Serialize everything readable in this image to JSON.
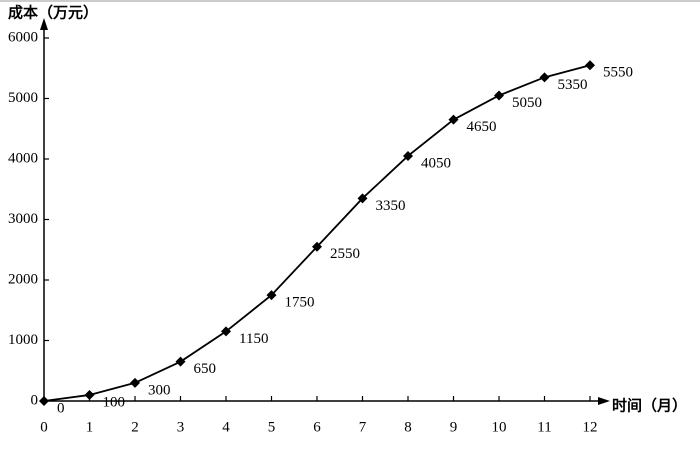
{
  "chart_data": {
    "type": "line",
    "y_label": "成本（万元）",
    "x_label": "时间（月）",
    "x": [
      0,
      1,
      2,
      3,
      4,
      5,
      6,
      7,
      8,
      9,
      10,
      11,
      12
    ],
    "values": [
      0,
      100,
      300,
      650,
      1150,
      1750,
      2550,
      3350,
      4050,
      4650,
      5050,
      5350,
      5550
    ],
    "color": "#000000",
    "xlim": [
      0,
      12
    ],
    "xticks": [
      0,
      1,
      2,
      3,
      4,
      5,
      6,
      7,
      8,
      9,
      10,
      11,
      12
    ],
    "ylim": [
      0,
      6000
    ],
    "yticks": [
      0,
      1000,
      2000,
      3000,
      4000,
      5000,
      6000
    ],
    "grid": false
  }
}
